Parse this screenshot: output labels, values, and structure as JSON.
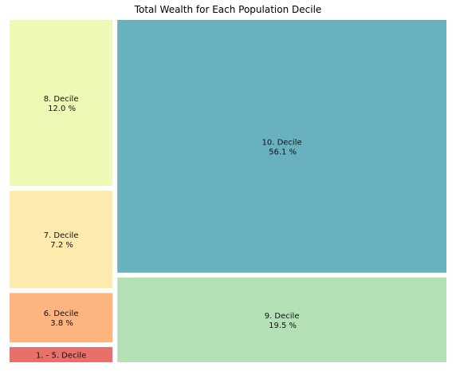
{
  "chart_data": {
    "type": "treemap",
    "title": "Total Wealth for Each Population Decile",
    "segments": [
      {
        "name": "10. Decile",
        "value_label": "56.1 %",
        "value": 56.1,
        "color": "#6ab1c0"
      },
      {
        "name": "9. Decile",
        "value_label": "19.5 %",
        "value": 19.5,
        "color": "#b4e0b6"
      },
      {
        "name": "8. Decile",
        "value_label": "12.0 %",
        "value": 12.0,
        "color": "#f0f8b5"
      },
      {
        "name": "7. Decile",
        "value_label": "7.2 %",
        "value": 7.2,
        "color": "#feeaac"
      },
      {
        "name": "6. Decile",
        "value_label": "3.8 %",
        "value": 3.8,
        "color": "#fdb47f"
      },
      {
        "name": "1. - 5. Decile",
        "value_label": "",
        "value": 1.4,
        "color": "#e86f6a"
      }
    ]
  }
}
